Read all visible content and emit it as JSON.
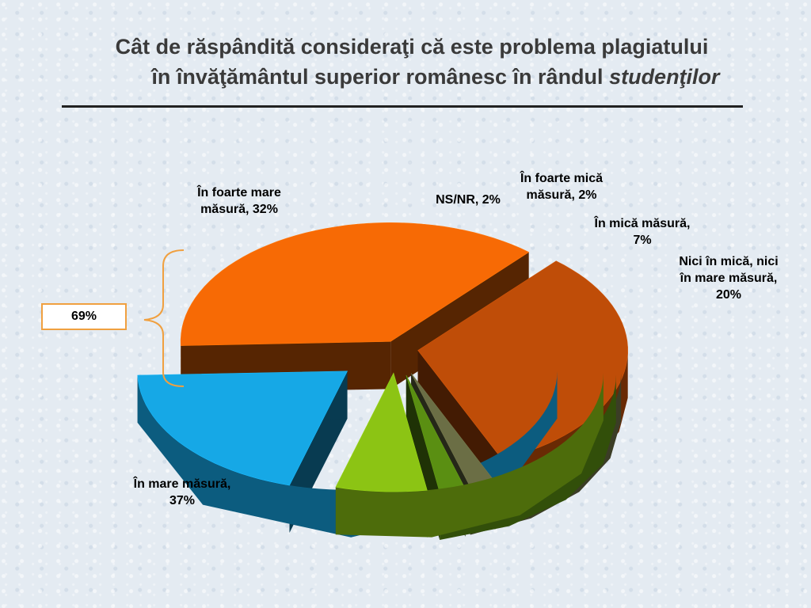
{
  "title": {
    "line1": "Cât de răspândită consideraţi că este problema plagiatului",
    "line2_prefix": "în învăţământul superior românesc în rândul ",
    "line2_emph": "studenţilor"
  },
  "callout": {
    "text": "69%",
    "color": "#f0a040"
  },
  "chart_data": {
    "type": "pie",
    "style": "3d-exploded",
    "units": "%",
    "categories": [
      "În mare măsură",
      "În foarte mare măsură",
      "NS/NR",
      "În foarte mică măsură",
      "În mică măsură",
      "Nici în mică, nici în mare măsură"
    ],
    "values": [
      37,
      32,
      2,
      2,
      7,
      20
    ],
    "data_labels": [
      [
        "În mare măsură,",
        "37%"
      ],
      [
        "În foarte mare",
        "măsură, 32%"
      ],
      [
        "NS/NR, 2%"
      ],
      [
        "În foarte mică",
        "măsură, 2%"
      ],
      [
        "În mică măsură,",
        "7%"
      ],
      [
        "Nici în mică, nici",
        "în mare măsură,",
        "20%"
      ]
    ],
    "colors": [
      "#f76a05",
      "#bf4d08",
      "#6b6e45",
      "#5a8f12",
      "#8cc414",
      "#16a8e6"
    ],
    "grouped_share": "69%"
  }
}
